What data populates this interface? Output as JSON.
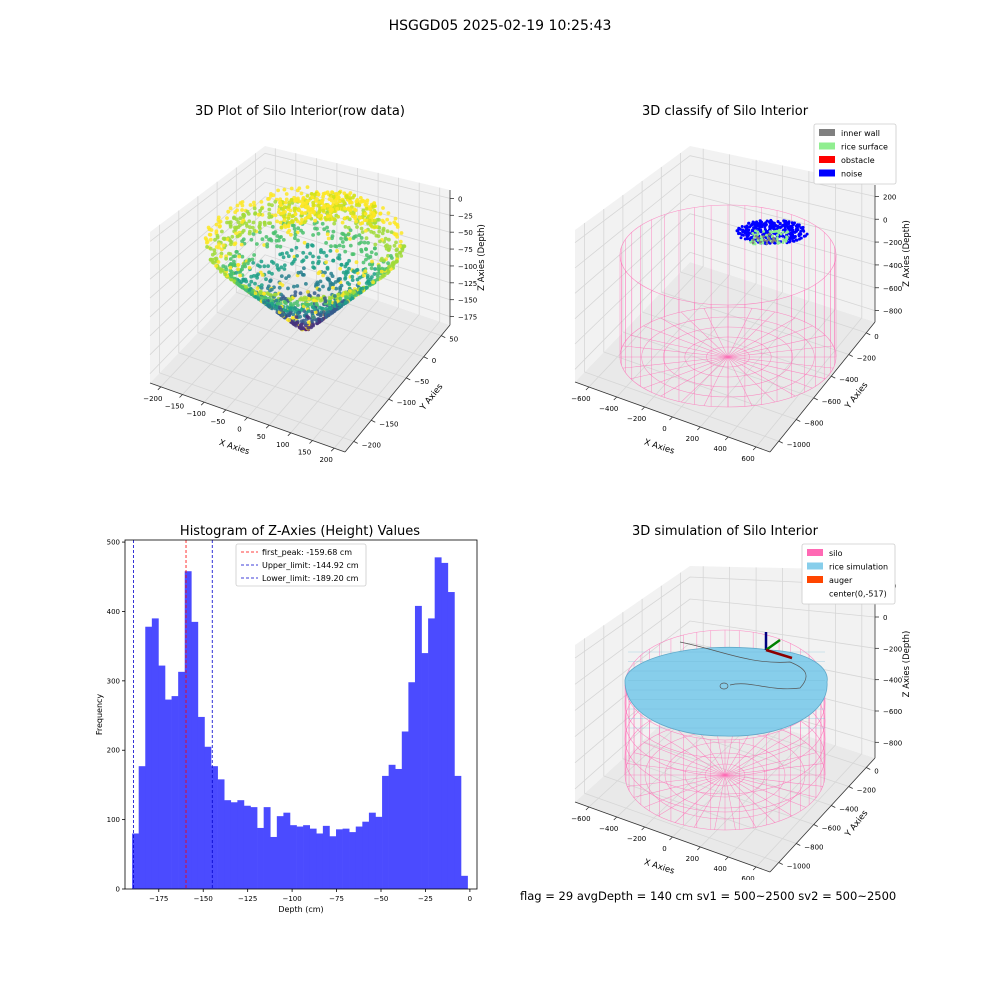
{
  "figure": {
    "suptitle": "HSGGD05 2025-02-19 10:25:43",
    "status_text": "flag = 29  avgDepth = 140 cm  sv1 = 500~2500  sv2 = 500~2500"
  },
  "colors": {
    "inner_wall": "#808080",
    "rice_surface": "#90ee90",
    "obstacle": "#ff0000",
    "noise": "#0000ff",
    "silo": "#ff69b4",
    "rice_simulation": "#87ceeb",
    "auger": "#ff4500",
    "histogram_bar": "#4b4bff"
  },
  "chart_data": [
    {
      "type": "scatter",
      "dims": 3,
      "title": "3D Plot of Silo Interior(row data)",
      "xlabel": "X Axies",
      "ylabel": "Y Axies",
      "zlabel": "Z Axies (Depth)",
      "x_ticks": [
        "−200",
        "−150",
        "−100",
        "−50",
        "0",
        "50",
        "100",
        "150",
        "200"
      ],
      "y_ticks": [
        "−200",
        "−150",
        "−100",
        "−50",
        "0",
        "50"
      ],
      "z_ticks": [
        "0",
        "−25",
        "−50",
        "−75",
        "−100",
        "−125",
        "−150",
        "−175"
      ],
      "colormap": "viridis"
    },
    {
      "type": "scatter",
      "dims": 3,
      "title": "3D classify of Silo Interior",
      "xlabel": "X Axies",
      "ylabel": "Y Axies",
      "zlabel": "Z Axies (Depth)",
      "x_ticks": [
        "−600",
        "−400",
        "−200",
        "0",
        "200",
        "400",
        "600"
      ],
      "y_ticks": [
        "−1000",
        "−800",
        "−600",
        "−400",
        "−200",
        "0"
      ],
      "z_ticks": [
        "200",
        "0",
        "−200",
        "−400",
        "−600",
        "−800"
      ],
      "legend": [
        "inner wall",
        "rice surface",
        "obstacle",
        "noise"
      ],
      "legend_loc": "upper right"
    },
    {
      "type": "bar",
      "title": "Histogram of Z-Axies (Height) Values",
      "xlabel": "Depth (cm)",
      "ylabel": "Frequency",
      "x_ticks": [
        -175,
        -150,
        -125,
        -100,
        -75,
        -50,
        -25,
        0
      ],
      "y_ticks": [
        0,
        100,
        200,
        300,
        400,
        500
      ],
      "xlim": [
        -194,
        4
      ],
      "ylim": [
        0,
        503
      ],
      "bin_start": -190,
      "bin_width": 3.7,
      "values": [
        80,
        177,
        378,
        390,
        322,
        273,
        278,
        313,
        458,
        385,
        248,
        205,
        177,
        158,
        128,
        125,
        128,
        120,
        118,
        88,
        118,
        75,
        105,
        110,
        92,
        90,
        92,
        87,
        80,
        91,
        76,
        86,
        87,
        82,
        90,
        97,
        110,
        104,
        163,
        179,
        173,
        227,
        298,
        408,
        340,
        390,
        478,
        470,
        428,
        163,
        19
      ],
      "lines": [
        {
          "name": "first_peak: -159.68 cm",
          "x": -159.68,
          "color": "#ff0000"
        },
        {
          "name": "Upper_limit: -144.92 cm",
          "x": -144.92,
          "color": "#0000cc"
        },
        {
          "name": "Lower_limit: -189.20 cm",
          "x": -189.2,
          "color": "#0000cc"
        }
      ],
      "legend_loc": "upper center"
    },
    {
      "type": "surface",
      "dims": 3,
      "title": "3D simulation of Silo Interior",
      "xlabel": "X Axies",
      "ylabel": "Y Axies",
      "zlabel": "Z Axies (Depth)",
      "x_ticks": [
        "−600",
        "−400",
        "−200",
        "0",
        "200",
        "400",
        "600"
      ],
      "y_ticks": [
        "−1000",
        "−800",
        "−600",
        "−400",
        "−200",
        "0"
      ],
      "z_ticks": [
        "200",
        "0",
        "−200",
        "−400",
        "−600",
        "−800"
      ],
      "legend": [
        "silo",
        "rice simulation",
        "auger",
        "center(0,-517)"
      ],
      "legend_loc": "upper right"
    }
  ]
}
